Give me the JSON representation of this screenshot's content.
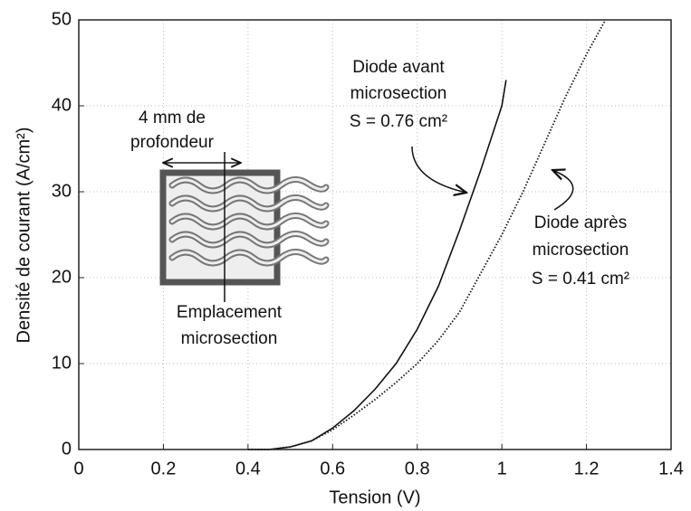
{
  "chart_data": {
    "type": "line",
    "xlabel": "Tension (V)",
    "ylabel": "Densité de courant (A/cm²)",
    "xlim": [
      0,
      1.4
    ],
    "xticks": [
      0,
      0.2,
      0.4,
      0.6,
      0.8,
      1,
      1.2,
      1.4
    ],
    "ylim": [
      0,
      50
    ],
    "yticks": [
      0,
      10,
      20,
      30,
      40,
      50
    ],
    "grid": true,
    "series": [
      {
        "color": "#111",
        "style": "solid",
        "x": [
          0.4,
          0.45,
          0.5,
          0.55,
          0.6,
          0.65,
          0.7,
          0.75,
          0.8,
          0.85,
          0.9,
          0.95,
          1.0,
          1.01
        ],
        "values": [
          0,
          0,
          0.3,
          1,
          2.5,
          4.5,
          7,
          10,
          14,
          19,
          25.5,
          32.5,
          40,
          43
        ]
      },
      {
        "color": "#111",
        "style": "dotted",
        "x": [
          0.4,
          0.45,
          0.5,
          0.55,
          0.6,
          0.65,
          0.7,
          0.75,
          0.8,
          0.85,
          0.9,
          0.95,
          1.0,
          1.05,
          1.1,
          1.15,
          1.2,
          1.245
        ],
        "values": [
          0,
          0,
          0.3,
          1,
          2.3,
          4,
          5.8,
          7.8,
          10,
          12.7,
          16,
          20.5,
          25,
          30,
          35.5,
          41,
          46,
          50
        ]
      }
    ],
    "annotations": [
      {
        "lines": [
          "Diode avant",
          "microsection",
          "S = 0.76 cm²"
        ]
      },
      {
        "lines": [
          "Diode après",
          "microsection",
          "S = 0.41 cm²"
        ]
      },
      {
        "lines": [
          "4 mm de",
          "profondeur"
        ]
      },
      {
        "lines": [
          "Emplacement",
          "microsection"
        ]
      }
    ]
  }
}
